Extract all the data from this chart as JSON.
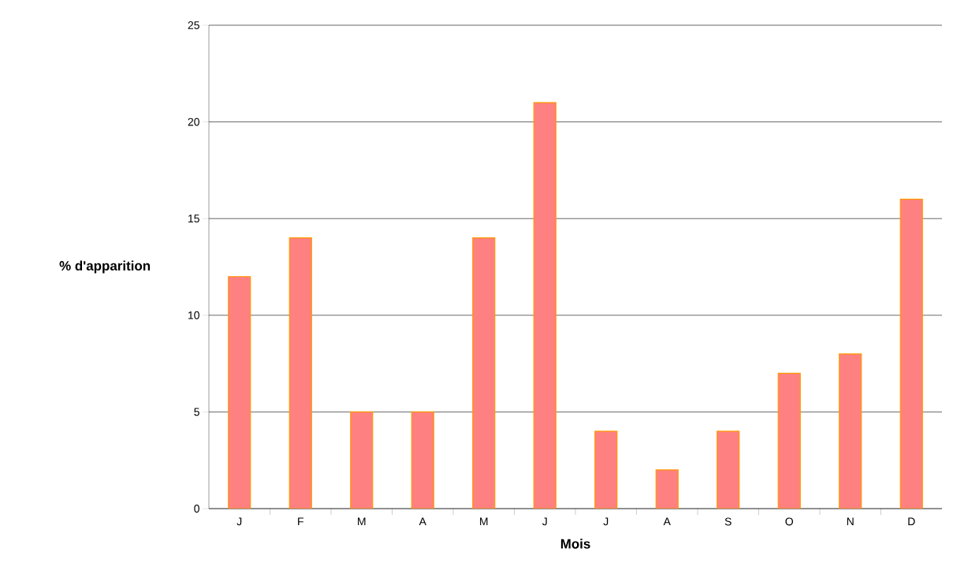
{
  "chart_data": {
    "type": "bar",
    "xlabel": "Mois",
    "ylabel": "% d'apparition",
    "categories": [
      "J",
      "F",
      "M",
      "A",
      "M",
      "J",
      "J",
      "A",
      "S",
      "O",
      "N",
      "D"
    ],
    "values": [
      12,
      14,
      5,
      5,
      14,
      21,
      4,
      2,
      4,
      7,
      8,
      16
    ],
    "color": "#ff8080",
    "ylim": [
      0,
      25
    ],
    "yticks": [
      0,
      5,
      10,
      15,
      20,
      25
    ],
    "grid": "y"
  }
}
